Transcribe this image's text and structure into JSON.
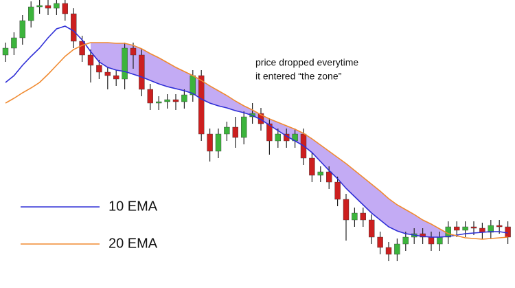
{
  "chart_data": {
    "type": "candlestick",
    "annotation": [
      "price dropped everytime",
      "it entered “the zone”"
    ],
    "open": [
      320,
      330,
      345,
      370,
      390,
      392,
      388,
      395,
      380,
      340,
      320,
      305,
      295,
      290,
      285,
      330,
      320,
      270,
      250,
      252,
      255,
      252,
      262,
      290,
      205,
      180,
      205,
      215,
      200,
      230,
      235,
      220,
      195,
      205,
      195,
      205,
      170,
      145,
      150,
      135,
      110,
      80,
      90,
      80,
      55,
      40,
      30,
      45,
      55,
      60,
      55,
      45,
      55,
      70,
      65,
      70,
      68,
      62,
      72,
      70
    ],
    "high": [
      338,
      353,
      378,
      398,
      400,
      400,
      403,
      403,
      388,
      348,
      328,
      313,
      303,
      298,
      338,
      338,
      328,
      278,
      260,
      263,
      263,
      270,
      298,
      298,
      213,
      213,
      223,
      230,
      238,
      250,
      243,
      228,
      213,
      213,
      213,
      213,
      178,
      158,
      158,
      143,
      118,
      98,
      98,
      88,
      63,
      48,
      53,
      63,
      68,
      68,
      63,
      63,
      78,
      78,
      78,
      78,
      76,
      80,
      80,
      78
    ],
    "low": [
      310,
      320,
      335,
      360,
      380,
      378,
      378,
      370,
      330,
      310,
      280,
      285,
      270,
      275,
      270,
      300,
      260,
      240,
      240,
      242,
      240,
      242,
      252,
      195,
      165,
      170,
      195,
      185,
      190,
      220,
      210,
      175,
      185,
      185,
      185,
      160,
      135,
      135,
      125,
      100,
      50,
      70,
      70,
      45,
      30,
      20,
      20,
      35,
      45,
      45,
      35,
      35,
      45,
      55,
      55,
      58,
      52,
      52,
      60,
      45
    ],
    "close": [
      330,
      345,
      370,
      390,
      392,
      388,
      395,
      380,
      340,
      320,
      305,
      295,
      290,
      285,
      330,
      320,
      270,
      250,
      252,
      255,
      252,
      262,
      290,
      205,
      180,
      205,
      215,
      200,
      230,
      235,
      220,
      195,
      205,
      195,
      205,
      170,
      145,
      150,
      135,
      110,
      80,
      90,
      80,
      55,
      40,
      30,
      45,
      55,
      60,
      55,
      45,
      55,
      70,
      65,
      70,
      68,
      62,
      72,
      70,
      55
    ],
    "up_color": "#3cb43c",
    "down_color": "#cc1f1f",
    "zone_color": "#b89cf2",
    "series": [
      {
        "name": "10 EMA",
        "color": "#2e2ed6",
        "values": [
          280,
          290,
          305,
          318,
          330,
          345,
          358,
          362,
          355,
          342,
          325,
          310,
          302,
          298,
          296,
          292,
          288,
          283,
          278,
          274,
          271,
          268,
          264,
          256,
          250,
          246,
          243,
          239,
          236,
          232,
          226,
          218,
          210,
          202,
          195,
          188,
          178,
          165,
          152,
          140,
          126,
          114,
          102,
          90,
          80,
          70,
          64,
          60,
          58,
          56,
          55,
          55,
          56,
          58,
          60,
          61,
          62,
          63,
          63,
          61
        ]
      },
      {
        "name": "20 EMA",
        "color": "#f08a30",
        "values": [
          250,
          257,
          265,
          272,
          280,
          292,
          305,
          318,
          328,
          334,
          338,
          338,
          338,
          337,
          337,
          334,
          329,
          322,
          316,
          309,
          302,
          296,
          290,
          283,
          275,
          268,
          261,
          253,
          246,
          240,
          233,
          227,
          222,
          217,
          212,
          206,
          198,
          189,
          180,
          171,
          162,
          152,
          142,
          132,
          122,
          111,
          102,
          95,
          88,
          80,
          74,
          67,
          60,
          57,
          54,
          53,
          52,
          53,
          54,
          55
        ]
      }
    ],
    "ylim": [
      -19,
      400
    ]
  }
}
